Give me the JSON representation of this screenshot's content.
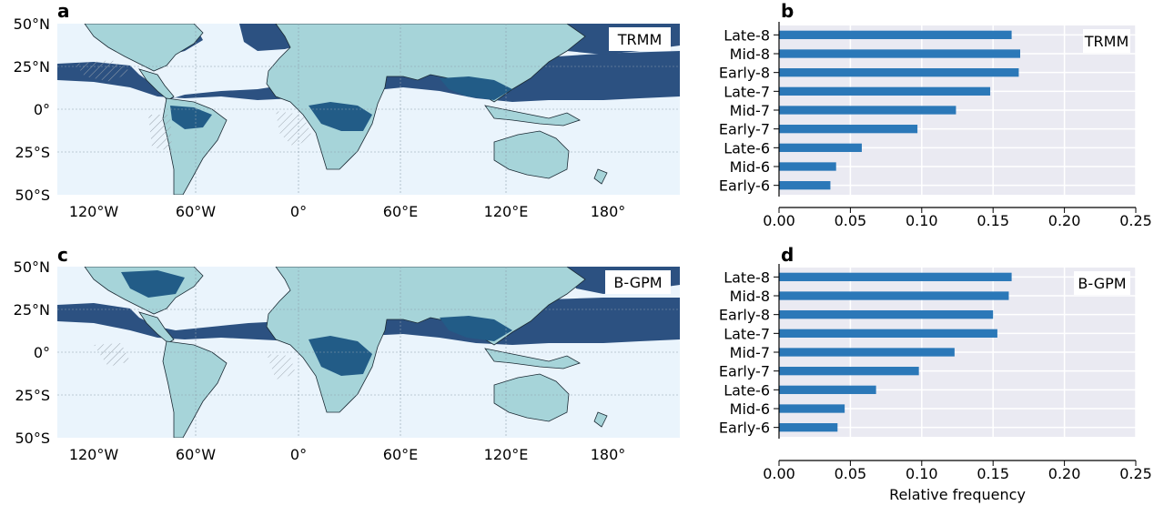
{
  "panel_letters": [
    "a",
    "b",
    "c",
    "d"
  ],
  "maps": [
    {
      "tag": "TRMM",
      "y_ticks": [
        "50°N",
        "25°N",
        "0°",
        "25°S",
        "50°S"
      ],
      "x_ticks": [
        "120°W",
        "60°W",
        "0°",
        "60°E",
        "120°E",
        "180°"
      ]
    },
    {
      "tag": "B-GPM",
      "y_ticks": [
        "50°N",
        "25°N",
        "0°",
        "25°S",
        "50°S"
      ],
      "x_ticks": [
        "120°W",
        "60°W",
        "0°",
        "60°E",
        "120°E",
        "180°"
      ]
    }
  ],
  "colors": {
    "bar": "#2b78b8",
    "axes_bg": "#eaeaf2",
    "ocean": "#eaf4fc",
    "land": "#a6d4d9",
    "region_dark": "#2c5181",
    "region_mid": "#225c87"
  },
  "chart_data": [
    {
      "type": "bar",
      "orientation": "horizontal",
      "panel": "b",
      "tag": "TRMM",
      "categories": [
        "Late-8",
        "Mid-8",
        "Early-8",
        "Late-7",
        "Mid-7",
        "Early-7",
        "Late-6",
        "Mid-6",
        "Early-6"
      ],
      "values": [
        0.163,
        0.169,
        0.168,
        0.148,
        0.124,
        0.097,
        0.058,
        0.04,
        0.036
      ],
      "xlim": [
        0,
        0.25
      ],
      "xticks": [
        "0.00",
        "0.05",
        "0.10",
        "0.15",
        "0.20",
        "0.25"
      ],
      "xlabel": "",
      "grid": true
    },
    {
      "type": "bar",
      "orientation": "horizontal",
      "panel": "d",
      "tag": "B-GPM",
      "categories": [
        "Late-8",
        "Mid-8",
        "Early-8",
        "Late-7",
        "Mid-7",
        "Early-7",
        "Late-6",
        "Mid-6",
        "Early-6"
      ],
      "values": [
        0.163,
        0.161,
        0.15,
        0.153,
        0.123,
        0.098,
        0.068,
        0.046,
        0.041
      ],
      "xlim": [
        0,
        0.25
      ],
      "xticks": [
        "0.00",
        "0.05",
        "0.10",
        "0.15",
        "0.20",
        "0.25"
      ],
      "xlabel": "Relative frequency",
      "grid": true
    }
  ]
}
